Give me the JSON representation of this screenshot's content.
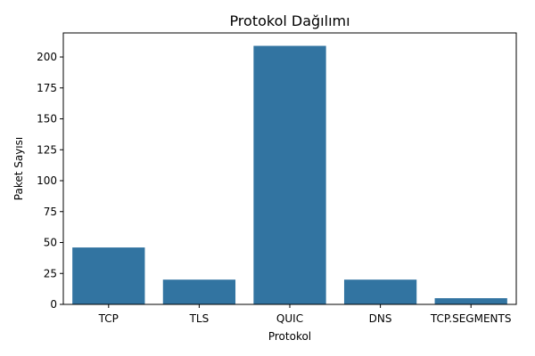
{
  "chart_data": {
    "type": "bar",
    "title": "Protokol Dağılımı",
    "xlabel": "Protokol",
    "ylabel": "Paket Sayısı",
    "categories": [
      "TCP",
      "TLS",
      "QUIC",
      "DNS",
      "TCP.SEGMENTS"
    ],
    "values": [
      46,
      20,
      209,
      20,
      5
    ],
    "ylim": [
      0,
      219.45
    ],
    "yticks": [
      0,
      25,
      50,
      75,
      100,
      125,
      150,
      175,
      200
    ],
    "grid": false,
    "legend": "none",
    "colors": {
      "bar": "#3274a1",
      "axis": "#000000"
    }
  }
}
